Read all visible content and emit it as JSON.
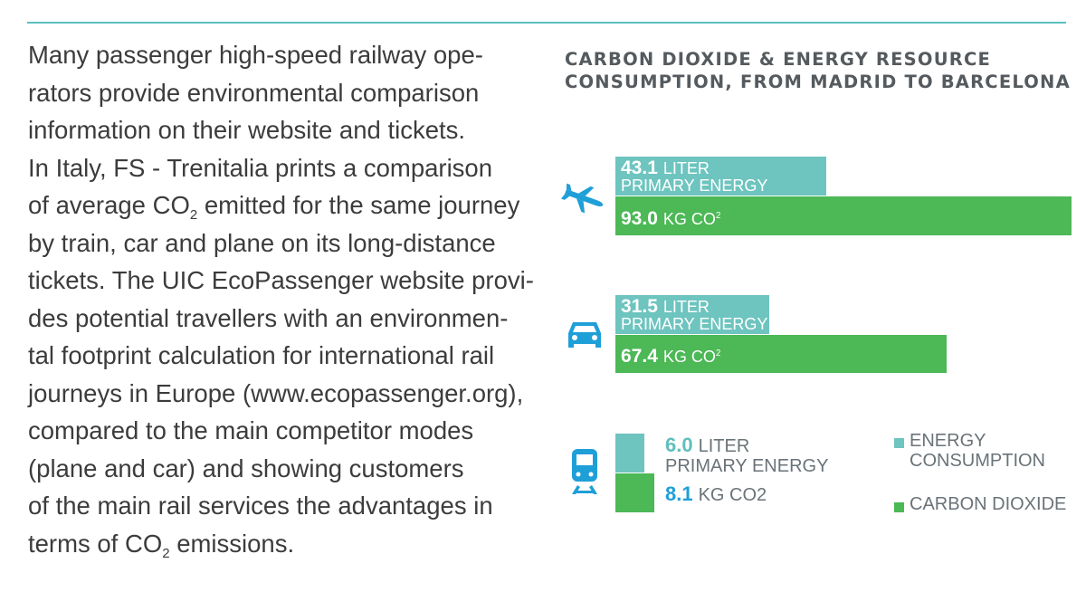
{
  "colors": {
    "rule": "#5bbfc0",
    "energy": "#6ec4bf",
    "co2": "#4cb856",
    "icon": "#1f9fd8"
  },
  "body_text": {
    "lines": [
      "Many passenger high-speed railway ope-",
      "rators provide environmental comparison",
      "information on their website and tickets.",
      "In Italy, FS - Trenitalia prints a comparison",
      "of average CO",
      "by train, car and plane on its long-distance",
      "tickets. The UIC EcoPassenger website provi-",
      "des potential travellers with an environmen-",
      "tal footprint calculation for international rail",
      "journeys in Europe (www.ecopassenger.org),",
      "compared to the main competitor modes",
      "(plane and car) and showing customers",
      "of the main rail services the advantages in",
      "terms of CO"
    ],
    "line5_sub": "2",
    "line5_rest": " emitted for the same journey",
    "line14_sub": "2",
    "line14_rest": " emissions."
  },
  "chart_data": {
    "type": "bar",
    "title_lines": [
      "CARBON DIOXIDE & ENERGY RESOURCE",
      "CONSUMPTION, FROM MADRID TO BARCELONA"
    ],
    "categories": [
      "plane",
      "car",
      "train"
    ],
    "icons": [
      "airplane-icon",
      "car-icon",
      "train-icon"
    ],
    "series": [
      {
        "name": "ENERGY CONSUMPTION",
        "values": [
          43.1,
          31.5,
          6.0
        ],
        "labels": [
          "43.1",
          "31.5",
          "6.0"
        ],
        "unit_line1": "LITER",
        "unit_line2": "PRIMARY ENERGY"
      },
      {
        "name": "CARBON DIOXIDE",
        "values": [
          93.0,
          67.4,
          8.1
        ],
        "labels": [
          "93.0",
          "67.4",
          "8.1"
        ],
        "units": [
          "KG CO",
          "KG CO",
          "KG CO2"
        ],
        "unit_sup": "2"
      }
    ],
    "legend": [
      "ENERGY",
      "CONSUMPTION",
      "CARBON DIOXIDE"
    ]
  }
}
